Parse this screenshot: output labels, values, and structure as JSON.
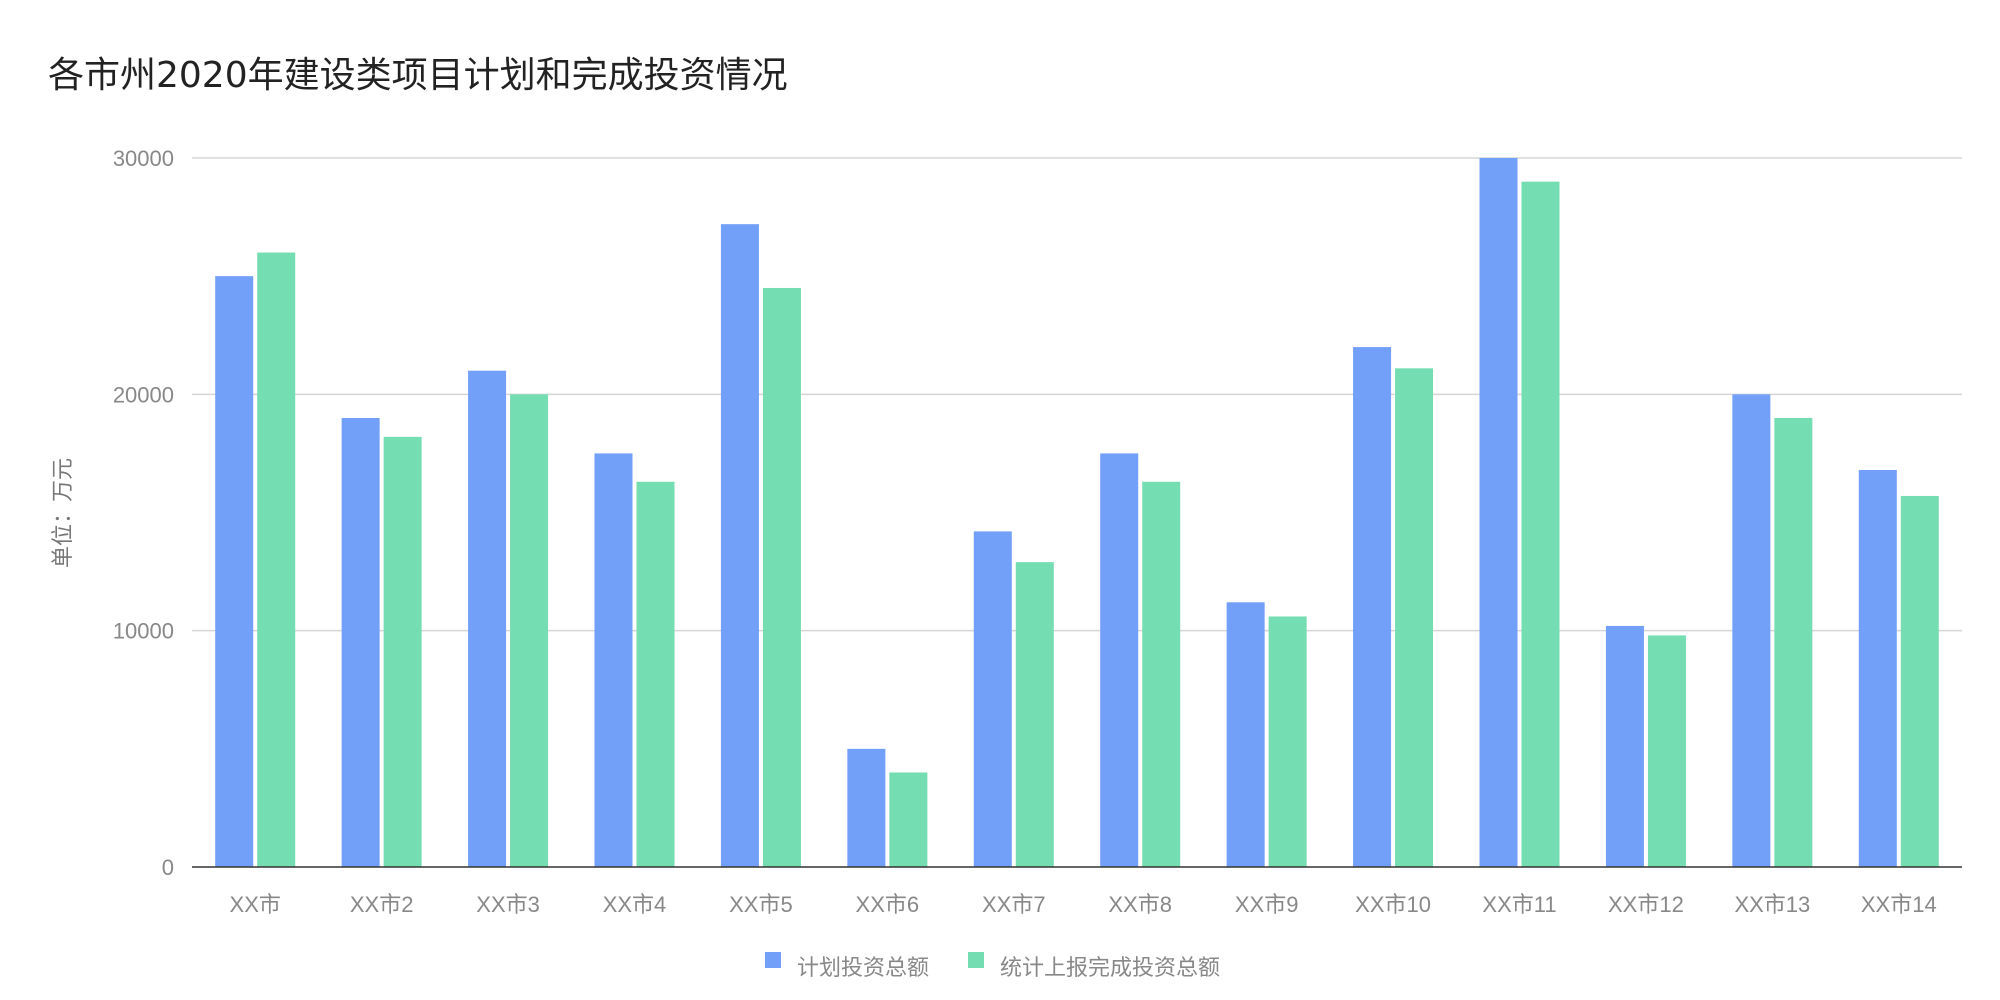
{
  "chart_data": {
    "type": "bar",
    "title": "各市州2020年建设类项目计划和完成投资情况",
    "ylabel": "单位：万元",
    "xlabel": "",
    "ylim": [
      0,
      30000
    ],
    "yticks": [
      0,
      10000,
      20000,
      30000
    ],
    "grid": true,
    "legend_position": "bottom-center",
    "categories": [
      "XX市",
      "XX市2",
      "XX市3",
      "XX市4",
      "XX市5",
      "XX市6",
      "XX市7",
      "XX市8",
      "XX市9",
      "XX市10",
      "XX市11",
      "XX市12",
      "XX市13",
      "XX市14"
    ],
    "series": [
      {
        "name": "计划投资总额",
        "color": "#729ff8",
        "values": [
          25000,
          19000,
          21000,
          17500,
          27200,
          5000,
          14200,
          17500,
          11200,
          22000,
          30000,
          10200,
          20000,
          16800
        ]
      },
      {
        "name": "统计上报完成投资总额",
        "color": "#74ddb2",
        "values": [
          26000,
          18200,
          20000,
          16300,
          24500,
          4000,
          12900,
          16300,
          10600,
          21100,
          29000,
          9800,
          19000,
          15700
        ]
      }
    ]
  }
}
